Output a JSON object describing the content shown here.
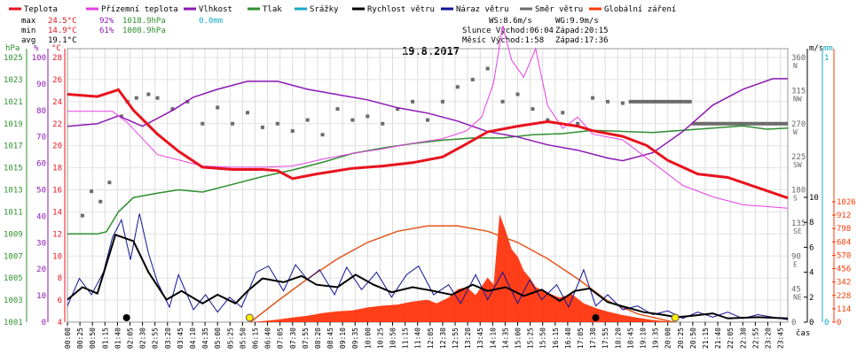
{
  "chart_data": {
    "type": "line",
    "title": "19.8.2017",
    "legend": [
      {
        "name": "Teplota",
        "color": "#e8121e"
      },
      {
        "name": "Přízemní teplota",
        "color": "#e540e5"
      },
      {
        "name": "Vlhkost",
        "color": "#8c17b4"
      },
      {
        "name": "Tlak",
        "color": "#2f8f2f"
      },
      {
        "name": "Srážky",
        "color": "#15a9c8"
      },
      {
        "name": "Rychlost větru",
        "color": "#000000"
      },
      {
        "name": "Náraz větru",
        "color": "#121294"
      },
      {
        "name": "Směr větru",
        "color": "#6b6b6b"
      },
      {
        "name": "Globální záření",
        "color": "#ff3a05"
      }
    ],
    "stats": {
      "max_label": "max",
      "max_temp": "24.5°C",
      "max_hum": "92%",
      "max_press": "1018.9hPa",
      "rain": "0.0mm",
      "min_label": "min",
      "min_temp": "14.9°C",
      "min_hum": "61%",
      "min_press": "1008.9hPa",
      "avg_label": "avg",
      "avg_temp": "19.1°C",
      "ws": "WS:8.6m/s",
      "wg": "WG:9.9m/s",
      "sun": "Slunce Východ:06:04",
      "sun_set": "Západ:20:15",
      "moon": "Měsíc  Východ:1:58",
      "moon_set": "Západ:17:36"
    },
    "axis_units": {
      "press": "hPa",
      "hum": "%",
      "temp": "°C",
      "wind": "m/s",
      "rain": "mm",
      "xlabel": "čas"
    },
    "x_ticks": [
      "00:00",
      "00:25",
      "00:50",
      "01:15",
      "01:40",
      "02:05",
      "02:30",
      "02:55",
      "03:20",
      "03:45",
      "04:10",
      "04:35",
      "05:00",
      "05:25",
      "05:50",
      "06:15",
      "06:40",
      "07:05",
      "07:30",
      "07:55",
      "08:20",
      "08:45",
      "09:10",
      "09:35",
      "10:00",
      "10:25",
      "10:50",
      "11:15",
      "11:40",
      "12:05",
      "12:30",
      "12:55",
      "13:20",
      "13:45",
      "14:10",
      "14:35",
      "15:00",
      "15:25",
      "15:50",
      "16:15",
      "16:40",
      "17:05",
      "17:30",
      "17:55",
      "18:20",
      "18:45",
      "19:10",
      "19:35",
      "20:00",
      "20:25",
      "20:50",
      "21:15",
      "21:40",
      "22:05",
      "22:30",
      "22:55",
      "23:20",
      "23:45"
    ],
    "pressure_ticks": [
      "1001",
      "1003",
      "1005",
      "1007",
      "1009",
      "1011",
      "1013",
      "1015",
      "1017",
      "1019",
      "1021",
      "1023",
      "1025"
    ],
    "humidity_ticks": [
      "0",
      "10",
      "20",
      "30",
      "40",
      "50",
      "60",
      "70",
      "80",
      "90",
      "100"
    ],
    "temp_ticks": [
      "4",
      "6",
      "8",
      "10",
      "12",
      "14",
      "16",
      "18",
      "20",
      "22",
      "24",
      "26",
      "28"
    ],
    "dir_ticks": [
      {
        "deg": "360",
        "lab": "N"
      },
      {
        "deg": "315",
        "lab": "NW"
      },
      {
        "deg": "270",
        "lab": "W"
      },
      {
        "deg": "225",
        "lab": "SW"
      },
      {
        "deg": "180",
        "lab": "S"
      },
      {
        "deg": "135",
        "lab": "SE"
      },
      {
        "deg": "90",
        "lab": "E"
      },
      {
        "deg": "45",
        "lab": "NE"
      },
      {
        "deg": "0",
        "lab": ""
      }
    ],
    "wind_ticks": [
      "0",
      "2",
      "4",
      "6",
      "8",
      "10"
    ],
    "rain_ticks": [
      "0",
      "1"
    ],
    "rad_ticks": [
      "0",
      "114",
      "228",
      "342",
      "456",
      "570",
      "684",
      "798",
      "912",
      "1026"
    ],
    "xlim_hours": [
      0,
      24
    ],
    "temperature": [
      [
        0,
        24
      ],
      [
        1,
        23.8
      ],
      [
        1.7,
        24.4
      ],
      [
        2.2,
        22.6
      ],
      [
        3,
        20.5
      ],
      [
        3.7,
        19
      ],
      [
        4.5,
        17.6
      ],
      [
        5.5,
        17.4
      ],
      [
        6.5,
        17.4
      ],
      [
        7,
        17.3
      ],
      [
        7.5,
        16.6
      ],
      [
        8.3,
        17
      ],
      [
        9.5,
        17.5
      ],
      [
        10.5,
        17.7
      ],
      [
        11.5,
        18
      ],
      [
        12.5,
        18.5
      ],
      [
        13.2,
        19.5
      ],
      [
        14,
        20.7
      ],
      [
        15,
        21.2
      ],
      [
        16,
        21.6
      ],
      [
        17,
        21.2
      ],
      [
        17.5,
        20.8
      ],
      [
        18.5,
        20.3
      ],
      [
        19.3,
        19.5
      ],
      [
        20,
        18.2
      ],
      [
        21,
        17
      ],
      [
        22,
        16.7
      ],
      [
        23,
        15.8
      ],
      [
        24,
        14.9
      ]
    ],
    "ground_temperature": [
      [
        0,
        22.5
      ],
      [
        1.5,
        22.5
      ],
      [
        2,
        21.5
      ],
      [
        3,
        18.7
      ],
      [
        4.5,
        17.7
      ],
      [
        5.5,
        17.6
      ],
      [
        6.5,
        17.6
      ],
      [
        7.5,
        17.7
      ],
      [
        8.5,
        18.3
      ],
      [
        9.5,
        18.8
      ],
      [
        10.5,
        19.2
      ],
      [
        11.5,
        19.7
      ],
      [
        12.5,
        20.1
      ],
      [
        13.3,
        20.8
      ],
      [
        13.8,
        22
      ],
      [
        14.2,
        25
      ],
      [
        14.5,
        30
      ],
      [
        14.8,
        27
      ],
      [
        15.2,
        25.5
      ],
      [
        15.6,
        28
      ],
      [
        16,
        23
      ],
      [
        16.5,
        21
      ],
      [
        17,
        22
      ],
      [
        17.5,
        20.5
      ],
      [
        18.5,
        20
      ],
      [
        19.5,
        18
      ],
      [
        20.5,
        16
      ],
      [
        21.5,
        15
      ],
      [
        22.5,
        14.3
      ],
      [
        24,
        14
      ]
    ],
    "humidity": [
      [
        0,
        74
      ],
      [
        1,
        75
      ],
      [
        1.7,
        78
      ],
      [
        2.5,
        74
      ],
      [
        3.5,
        80
      ],
      [
        4.2,
        85
      ],
      [
        5,
        88
      ],
      [
        6,
        91
      ],
      [
        7,
        91
      ],
      [
        8,
        88
      ],
      [
        9,
        86
      ],
      [
        10,
        84
      ],
      [
        11,
        81
      ],
      [
        12,
        79
      ],
      [
        13,
        76
      ],
      [
        14,
        72
      ],
      [
        15,
        70
      ],
      [
        16,
        67
      ],
      [
        17,
        65
      ],
      [
        18,
        62
      ],
      [
        18.5,
        61
      ],
      [
        19.5,
        64
      ],
      [
        20.5,
        72
      ],
      [
        21.5,
        82
      ],
      [
        22.5,
        88
      ],
      [
        23.5,
        92
      ],
      [
        24,
        92
      ]
    ],
    "pressure": [
      [
        0,
        1009
      ],
      [
        1,
        1009
      ],
      [
        1.3,
        1009.2
      ],
      [
        1.7,
        1011
      ],
      [
        2.2,
        1012.3
      ],
      [
        3,
        1012.7
      ],
      [
        3.7,
        1013
      ],
      [
        4.5,
        1012.8
      ],
      [
        5.5,
        1013.5
      ],
      [
        6.5,
        1014.2
      ],
      [
        7.5,
        1014.8
      ],
      [
        8.5,
        1015.5
      ],
      [
        9.5,
        1016.3
      ],
      [
        10.5,
        1016.8
      ],
      [
        11.5,
        1017.2
      ],
      [
        12.5,
        1017.5
      ],
      [
        13.5,
        1017.7
      ],
      [
        14.5,
        1017.7
      ],
      [
        15.5,
        1018
      ],
      [
        16.5,
        1018.1
      ],
      [
        17.5,
        1018.4
      ],
      [
        18.5,
        1018.3
      ],
      [
        19.5,
        1018.2
      ],
      [
        20.5,
        1018.4
      ],
      [
        21.5,
        1018.6
      ],
      [
        22.5,
        1018.8
      ],
      [
        23.3,
        1018.5
      ],
      [
        24,
        1018.6
      ]
    ],
    "wind_speed": [
      [
        0,
        1.8
      ],
      [
        0.5,
        2.8
      ],
      [
        1,
        2.3
      ],
      [
        1.6,
        7
      ],
      [
        2.2,
        6.5
      ],
      [
        2.7,
        4
      ],
      [
        3.3,
        1.8
      ],
      [
        3.8,
        2.5
      ],
      [
        4.5,
        1.5
      ],
      [
        5,
        2.2
      ],
      [
        5.6,
        1.5
      ],
      [
        6,
        2.5
      ],
      [
        6.5,
        3.5
      ],
      [
        7.2,
        3.2
      ],
      [
        7.8,
        3.7
      ],
      [
        8.3,
        3
      ],
      [
        9,
        2.8
      ],
      [
        9.6,
        3.8
      ],
      [
        10.2,
        3
      ],
      [
        10.8,
        2.4
      ],
      [
        11.5,
        2.8
      ],
      [
        12.2,
        2.5
      ],
      [
        12.8,
        2.2
      ],
      [
        13.5,
        3
      ],
      [
        14,
        2.5
      ],
      [
        14.6,
        2.8
      ],
      [
        15.2,
        2.1
      ],
      [
        15.8,
        2.6
      ],
      [
        16.4,
        1.7
      ],
      [
        16.9,
        2.5
      ],
      [
        17.4,
        2.7
      ],
      [
        18,
        1.6
      ],
      [
        18.6,
        1.2
      ],
      [
        19.2,
        0.8
      ],
      [
        19.8,
        0.6
      ],
      [
        20.3,
        0.4
      ],
      [
        20.8,
        0.5
      ],
      [
        21.5,
        0.7
      ],
      [
        22,
        0.3
      ],
      [
        23,
        0.4
      ],
      [
        24,
        0.3
      ]
    ],
    "wind_gust": [
      [
        0,
        1.3
      ],
      [
        0.4,
        3.5
      ],
      [
        0.8,
        2.2
      ],
      [
        1.2,
        4
      ],
      [
        1.5,
        6.8
      ],
      [
        1.8,
        8.2
      ],
      [
        2.1,
        5
      ],
      [
        2.4,
        8.7
      ],
      [
        2.7,
        5.5
      ],
      [
        3,
        3.2
      ],
      [
        3.4,
        1.2
      ],
      [
        3.7,
        3.8
      ],
      [
        4.2,
        1
      ],
      [
        4.6,
        2.2
      ],
      [
        5,
        0.8
      ],
      [
        5.4,
        2
      ],
      [
        5.8,
        1.2
      ],
      [
        6.3,
        4
      ],
      [
        6.7,
        4.5
      ],
      [
        7.2,
        2.5
      ],
      [
        7.6,
        4.6
      ],
      [
        8,
        3.4
      ],
      [
        8.4,
        4.2
      ],
      [
        8.9,
        2.2
      ],
      [
        9.3,
        4.4
      ],
      [
        9.8,
        2.6
      ],
      [
        10.3,
        4
      ],
      [
        10.8,
        2
      ],
      [
        11.3,
        3.8
      ],
      [
        11.7,
        4.5
      ],
      [
        12.2,
        2.2
      ],
      [
        12.7,
        3
      ],
      [
        13.1,
        1.5
      ],
      [
        13.6,
        3.8
      ],
      [
        14,
        1.8
      ],
      [
        14.5,
        4
      ],
      [
        15,
        1.5
      ],
      [
        15.4,
        3.4
      ],
      [
        15.8,
        1.8
      ],
      [
        16.3,
        3
      ],
      [
        16.7,
        1.2
      ],
      [
        17.2,
        4.2
      ],
      [
        17.6,
        1.3
      ],
      [
        18,
        2.2
      ],
      [
        18.5,
        1
      ],
      [
        19,
        1.3
      ],
      [
        19.5,
        0.6
      ],
      [
        20,
        0.9
      ],
      [
        20.5,
        0.3
      ],
      [
        21,
        0.8
      ],
      [
        21.5,
        0.4
      ],
      [
        22,
        0.8
      ],
      [
        22.5,
        0.3
      ],
      [
        23,
        0.6
      ],
      [
        24,
        0.2
      ]
    ],
    "wind_direction": [
      [
        0.5,
        145
      ],
      [
        0.8,
        178
      ],
      [
        1.1,
        164
      ],
      [
        1.4,
        190
      ],
      [
        1.8,
        280
      ],
      [
        2,
        300
      ],
      [
        2.3,
        305
      ],
      [
        2.7,
        310
      ],
      [
        3,
        305
      ],
      [
        3.5,
        290
      ],
      [
        4,
        300
      ],
      [
        4.5,
        270
      ],
      [
        5,
        292
      ],
      [
        5.5,
        270
      ],
      [
        6,
        285
      ],
      [
        6.5,
        265
      ],
      [
        7,
        270
      ],
      [
        7.5,
        260
      ],
      [
        8,
        275
      ],
      [
        8.5,
        255
      ],
      [
        9,
        290
      ],
      [
        9.5,
        275
      ],
      [
        10,
        280
      ],
      [
        10.5,
        270
      ],
      [
        11,
        290
      ],
      [
        11.5,
        300
      ],
      [
        12,
        275
      ],
      [
        12.5,
        300
      ],
      [
        13,
        320
      ],
      [
        13.5,
        330
      ],
      [
        14,
        345
      ],
      [
        14.5,
        300
      ],
      [
        15,
        310
      ],
      [
        15.5,
        290
      ],
      [
        16,
        275
      ],
      [
        16.5,
        285
      ],
      [
        17,
        270
      ],
      [
        17.5,
        305
      ],
      [
        18,
        300
      ],
      [
        18.5,
        298
      ]
    ],
    "radiation": [
      [
        6.1,
        0
      ],
      [
        6.5,
        8
      ],
      [
        7,
        22
      ],
      [
        7.5,
        40
      ],
      [
        8,
        55
      ],
      [
        8.5,
        78
      ],
      [
        9,
        92
      ],
      [
        9.5,
        100
      ],
      [
        10,
        125
      ],
      [
        10.5,
        140
      ],
      [
        11,
        150
      ],
      [
        11.5,
        175
      ],
      [
        12,
        190
      ],
      [
        12.3,
        160
      ],
      [
        12.7,
        210
      ],
      [
        13,
        280
      ],
      [
        13.3,
        300
      ],
      [
        13.6,
        230
      ],
      [
        14,
        380
      ],
      [
        14.2,
        320
      ],
      [
        14.4,
        920
      ],
      [
        14.6,
        780
      ],
      [
        14.8,
        620
      ],
      [
        15,
        560
      ],
      [
        15.2,
        440
      ],
      [
        15.4,
        380
      ],
      [
        15.6,
        300
      ],
      [
        16,
        250
      ],
      [
        16.4,
        210
      ],
      [
        16.8,
        240
      ],
      [
        17.2,
        160
      ],
      [
        17.6,
        120
      ],
      [
        18,
        90
      ],
      [
        18.5,
        60
      ],
      [
        19,
        38
      ],
      [
        19.5,
        18
      ],
      [
        20,
        6
      ],
      [
        20.3,
        0
      ]
    ],
    "clear_sky_radiation": [
      [
        6.1,
        0
      ],
      [
        7,
        180
      ],
      [
        8,
        370
      ],
      [
        9,
        540
      ],
      [
        10,
        680
      ],
      [
        11,
        775
      ],
      [
        12,
        820
      ],
      [
        13,
        820
      ],
      [
        14,
        775
      ],
      [
        15,
        680
      ],
      [
        16,
        540
      ],
      [
        17,
        370
      ],
      [
        18,
        180
      ],
      [
        19,
        70
      ],
      [
        20.2,
        0
      ]
    ]
  }
}
